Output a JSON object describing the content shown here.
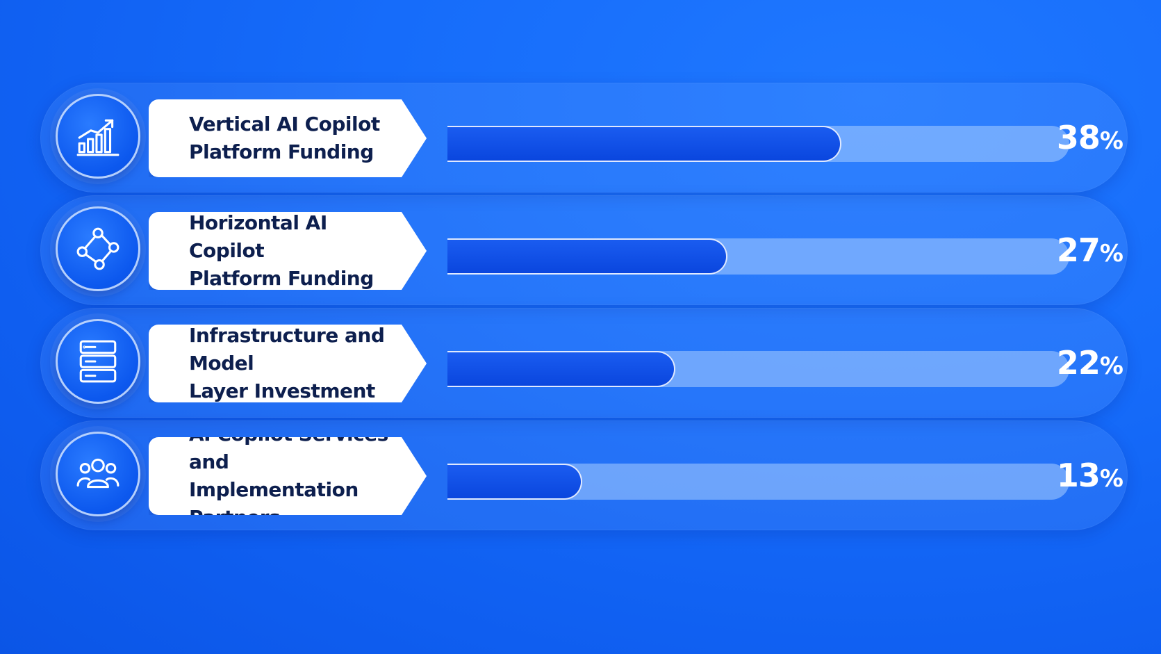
{
  "chart_data": {
    "type": "bar",
    "orientation": "horizontal",
    "categories": [
      "Vertical AI Copilot Platform Funding",
      "Horizontal AI Copilot Platform Funding",
      "Infrastructure and Model Layer Investment",
      "AI Copilot Services and Implementation Partners"
    ],
    "values": [
      38,
      27,
      22,
      13
    ],
    "value_labels": [
      "38",
      "27",
      "22",
      "13"
    ],
    "unit": "%",
    "xlim": [
      0,
      60
    ],
    "title": "",
    "xlabel": "",
    "ylabel": "",
    "grid": false,
    "legend": "none"
  },
  "rows": [
    {
      "icon": "growth-chart-icon",
      "label_line1": "Vertical AI Copilot",
      "label_line2": "Platform Funding"
    },
    {
      "icon": "network-nodes-icon",
      "label_line1": "Horizontal AI Copilot",
      "label_line2": "Platform Funding"
    },
    {
      "icon": "server-stack-icon",
      "label_line1": "Infrastructure and Model",
      "label_line2": "Layer Investment"
    },
    {
      "icon": "people-group-icon",
      "label_line1": "AI Copilot Services and",
      "label_line2": "Implementation Partners"
    }
  ],
  "colors": {
    "background": "#166cfa",
    "bar_fill": "#0a46de",
    "track": "#aacdff",
    "label_card": "#ffffff",
    "label_text": "#0d1f4e",
    "value_text": "#ffffff"
  }
}
